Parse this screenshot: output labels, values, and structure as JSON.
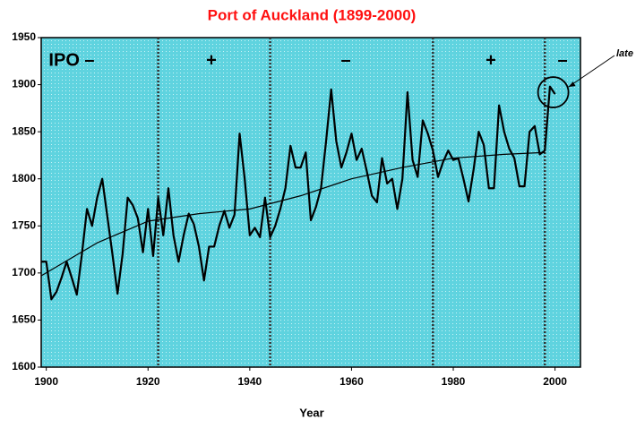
{
  "chart_data": {
    "type": "line",
    "title": "Port of Auckland  (1899-2000)",
    "xlabel": "Year",
    "xlim": [
      1899,
      2005
    ],
    "xticks": [
      1900,
      1920,
      1940,
      1960,
      1980,
      2000
    ],
    "ylim": [
      1600,
      1950
    ],
    "yticks": [
      1600,
      1650,
      1700,
      1750,
      1800,
      1850,
      1900,
      1950
    ],
    "phase_boundaries": [
      1922,
      1944,
      1976,
      1998
    ],
    "phase_labels": [
      "IPO –",
      "+",
      "–",
      "+",
      "–"
    ],
    "annotation": "late",
    "series": [
      {
        "color": "#000000",
        "x": [
          1899,
          1900,
          1901,
          1902,
          1903,
          1904,
          1905,
          1906,
          1907,
          1908,
          1909,
          1910,
          1911,
          1912,
          1913,
          1914,
          1915,
          1916,
          1917,
          1918,
          1919,
          1920,
          1921,
          1922,
          1923,
          1924,
          1925,
          1926,
          1927,
          1928,
          1929,
          1930,
          1931,
          1932,
          1933,
          1934,
          1935,
          1936,
          1937,
          1938,
          1939,
          1940,
          1941,
          1942,
          1943,
          1944,
          1945,
          1946,
          1947,
          1948,
          1949,
          1950,
          1951,
          1952,
          1953,
          1954,
          1955,
          1956,
          1957,
          1958,
          1959,
          1960,
          1961,
          1962,
          1963,
          1964,
          1965,
          1966,
          1967,
          1968,
          1969,
          1970,
          1971,
          1972,
          1973,
          1974,
          1975,
          1976,
          1977,
          1978,
          1979,
          1980,
          1981,
          1982,
          1983,
          1984,
          1985,
          1986,
          1987,
          1988,
          1989,
          1990,
          1991,
          1992,
          1993,
          1994,
          1995,
          1996,
          1997,
          1998,
          1999,
          2000
        ],
        "values": [
          1712,
          1712,
          1672,
          1680,
          1695,
          1712,
          1695,
          1677,
          1720,
          1768,
          1750,
          1780,
          1800,
          1760,
          1720,
          1678,
          1720,
          1780,
          1772,
          1758,
          1722,
          1768,
          1718,
          1780,
          1740,
          1790,
          1740,
          1712,
          1740,
          1763,
          1752,
          1728,
          1692,
          1728,
          1728,
          1750,
          1766,
          1748,
          1762,
          1848,
          1800,
          1740,
          1748,
          1738,
          1780,
          1738,
          1750,
          1768,
          1790,
          1835,
          1812,
          1812,
          1828,
          1756,
          1770,
          1790,
          1840,
          1895,
          1840,
          1812,
          1828,
          1848,
          1820,
          1832,
          1808,
          1782,
          1775,
          1822,
          1795,
          1800,
          1768,
          1800,
          1892,
          1820,
          1802,
          1862,
          1848,
          1830,
          1802,
          1818,
          1830,
          1820,
          1822,
          1800,
          1776,
          1810,
          1850,
          1836,
          1790,
          1790,
          1878,
          1850,
          1832,
          1822,
          1792,
          1792,
          1850,
          1856,
          1826,
          1830,
          1898,
          1890
        ]
      },
      {
        "color": "#000000",
        "x": [
          1899,
          1910,
          1920,
          1930,
          1940,
          1950,
          1960,
          1970,
          1980,
          1990,
          1998
        ],
        "values": [
          1697,
          1732,
          1755,
          1763,
          1768,
          1782,
          1800,
          1812,
          1822,
          1826,
          1828
        ]
      }
    ]
  }
}
